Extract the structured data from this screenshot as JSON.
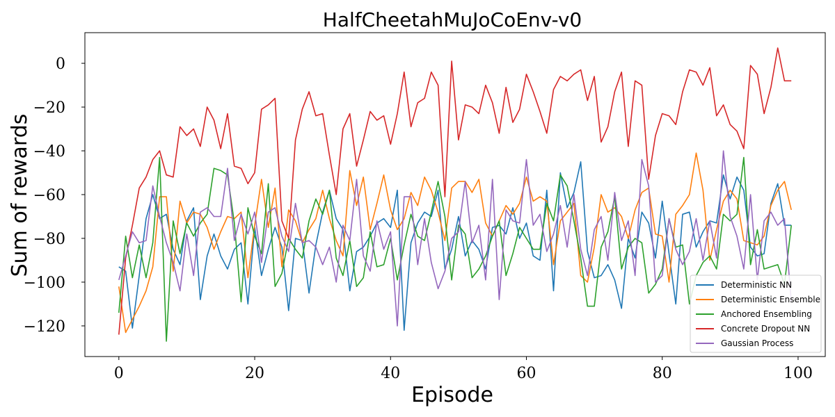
{
  "chart_data": {
    "type": "line",
    "title": "HalfCheetahMuJoCoEnv-v0",
    "xlabel": "Episode",
    "ylabel": "Sum of rewards",
    "xlim": [
      -5,
      104
    ],
    "ylim": [
      -134,
      14
    ],
    "xticks": [
      0,
      20,
      40,
      60,
      80,
      100
    ],
    "yticks": [
      0,
      -20,
      -40,
      -60,
      -80,
      -100,
      -120
    ],
    "ytick_labels": [
      "0",
      "−20",
      "−40",
      "−60",
      "−80",
      "−100",
      "−120"
    ],
    "grid": false,
    "legend_position": "lower-right",
    "x": [
      0,
      1,
      2,
      3,
      4,
      5,
      6,
      7,
      8,
      9,
      10,
      11,
      12,
      13,
      14,
      15,
      16,
      17,
      18,
      19,
      20,
      21,
      22,
      23,
      24,
      25,
      26,
      27,
      28,
      29,
      30,
      31,
      32,
      33,
      34,
      35,
      36,
      37,
      38,
      39,
      40,
      41,
      42,
      43,
      44,
      45,
      46,
      47,
      48,
      49,
      50,
      51,
      52,
      53,
      54,
      55,
      56,
      57,
      58,
      59,
      60,
      61,
      62,
      63,
      64,
      65,
      66,
      67,
      68,
      69,
      70,
      71,
      72,
      73,
      74,
      75,
      76,
      77,
      78,
      79,
      80,
      81,
      82,
      83,
      84,
      85,
      86,
      87,
      88,
      89,
      90,
      91,
      92,
      93,
      94,
      95,
      96,
      97,
      98,
      99
    ],
    "series": [
      {
        "name": "Deterministic NN",
        "color": "#1f77b4",
        "values": [
          -93,
          -95,
          -121,
          -97,
          -71,
          -60,
          -71,
          -69,
          -85,
          -92,
          -72,
          -66,
          -108,
          -88,
          -78,
          -88,
          -94,
          -85,
          -82,
          -110,
          -75,
          -97,
          -85,
          -75,
          -84,
          -113,
          -80,
          -81,
          -105,
          -83,
          -68,
          -58,
          -71,
          -76,
          -104,
          -86,
          -84,
          -79,
          -73,
          -71,
          -75,
          -58,
          -122,
          -82,
          -73,
          -68,
          -70,
          -58,
          -94,
          -85,
          -70,
          -88,
          -81,
          -85,
          -94,
          -75,
          -74,
          -78,
          -66,
          -80,
          -73,
          -88,
          -90,
          -58,
          -104,
          -50,
          -66,
          -59,
          -45,
          -86,
          -98,
          -97,
          -92,
          -99,
          -112,
          -80,
          -89,
          -68,
          -73,
          -89,
          -63,
          -87,
          -110,
          -69,
          -68,
          -84,
          -77,
          -72,
          -73,
          -51,
          -62,
          -52,
          -58,
          -84,
          -88,
          -87,
          -64,
          -55,
          -74,
          -74
        ]
      },
      {
        "name": "Deterministic Ensemble",
        "color": "#ff7f0e",
        "values": [
          -102,
          -123,
          -117,
          -111,
          -104,
          -93,
          -61,
          -61,
          -95,
          -63,
          -73,
          -68,
          -69,
          -75,
          -85,
          -77,
          -70,
          -71,
          -68,
          -98,
          -74,
          -53,
          -75,
          -57,
          -93,
          -67,
          -72,
          -82,
          -76,
          -71,
          -58,
          -71,
          -81,
          -88,
          -49,
          -65,
          -52,
          -76,
          -64,
          -51,
          -67,
          -76,
          -71,
          -59,
          -65,
          -52,
          -58,
          -68,
          -81,
          -57,
          -54,
          -54,
          -59,
          -53,
          -73,
          -79,
          -72,
          -65,
          -69,
          -64,
          -52,
          -63,
          -61,
          -63,
          -92,
          -72,
          -68,
          -64,
          -97,
          -100,
          -84,
          -60,
          -68,
          -66,
          -70,
          -80,
          -67,
          -59,
          -57,
          -78,
          -79,
          -100,
          -69,
          -65,
          -60,
          -41,
          -58,
          -90,
          -76,
          -63,
          -58,
          -62,
          -81,
          -82,
          -83,
          -79,
          -65,
          -58,
          -54,
          -67
        ]
      },
      {
        "name": "Anchored Ensembling",
        "color": "#2ca02c",
        "values": [
          -114,
          -79,
          -98,
          -83,
          -98,
          -82,
          -43,
          -127,
          -72,
          -87,
          -73,
          -79,
          -73,
          -69,
          -48,
          -49,
          -51,
          -73,
          -109,
          -66,
          -79,
          -87,
          -55,
          -102,
          -96,
          -80,
          -85,
          -89,
          -72,
          -62,
          -69,
          -58,
          -89,
          -97,
          -81,
          -102,
          -98,
          -77,
          -93,
          -92,
          -80,
          -99,
          -83,
          -69,
          -79,
          -81,
          -68,
          -54,
          -70,
          -99,
          -74,
          -78,
          -98,
          -94,
          -88,
          -79,
          -72,
          -97,
          -87,
          -75,
          -80,
          -85,
          -85,
          -64,
          -72,
          -51,
          -56,
          -72,
          -89,
          -111,
          -111,
          -84,
          -77,
          -61,
          -94,
          -84,
          -80,
          -82,
          -105,
          -101,
          -94,
          -71,
          -84,
          -83,
          -110,
          -97,
          -91,
          -88,
          -94,
          -69,
          -72,
          -69,
          -43,
          -92,
          -76,
          -94,
          -93,
          -92,
          -101,
          -74
        ]
      },
      {
        "name": "Concrete Dropout NN",
        "color": "#d62728",
        "values": [
          -124,
          -89,
          -74,
          -57,
          -52,
          -44,
          -40,
          -51,
          -52,
          -29,
          -33,
          -30,
          -38,
          -20,
          -26,
          -39,
          -23,
          -47,
          -48,
          -55,
          -50,
          -21,
          -19,
          -16,
          -72,
          -80,
          -35,
          -21,
          -13,
          -24,
          -23,
          -42,
          -60,
          -30,
          -23,
          -47,
          -35,
          -22,
          -26,
          -24,
          -37,
          -23,
          -4,
          -29,
          -18,
          -16,
          -4,
          -10,
          -61,
          1,
          -35,
          -19,
          -20,
          -23,
          -10,
          -18,
          -32,
          -11,
          -27,
          -21,
          -5,
          -13,
          -22,
          -32,
          -12,
          -6,
          -8,
          -5,
          -3,
          -17,
          -6,
          -36,
          -29,
          -13,
          -4,
          -38,
          -8,
          -10,
          -53,
          -33,
          -23,
          -24,
          -28,
          -13,
          -3,
          -4,
          -10,
          -2,
          -24,
          -19,
          -28,
          -31,
          -39,
          -1,
          -5,
          -23,
          -11,
          7,
          -8,
          -8
        ]
      },
      {
        "name": "Gaussian Process",
        "color": "#9467bd",
        "values": [
          -99,
          -88,
          -77,
          -82,
          -81,
          -56,
          -70,
          -82,
          -91,
          -104,
          -78,
          -97,
          -68,
          -66,
          -70,
          -70,
          -48,
          -81,
          -69,
          -78,
          -68,
          -91,
          -68,
          -66,
          -79,
          -86,
          -64,
          -82,
          -81,
          -84,
          -92,
          -84,
          -100,
          -74,
          -81,
          -53,
          -88,
          -95,
          -72,
          -85,
          -77,
          -120,
          -61,
          -61,
          -92,
          -71,
          -91,
          -103,
          -95,
          -80,
          -77,
          -54,
          -82,
          -74,
          -99,
          -53,
          -108,
          -67,
          -72,
          -73,
          -44,
          -74,
          -69,
          -86,
          -78,
          -65,
          -84,
          -60,
          -85,
          -97,
          -76,
          -70,
          -90,
          -59,
          -81,
          -72,
          -97,
          -44,
          -56,
          -100,
          -97,
          -71,
          -85,
          -92,
          -86,
          -71,
          -90,
          -72,
          -89,
          -40,
          -70,
          -79,
          -94,
          -60,
          -99,
          -72,
          -68,
          -74,
          -71,
          -109
        ]
      }
    ]
  }
}
